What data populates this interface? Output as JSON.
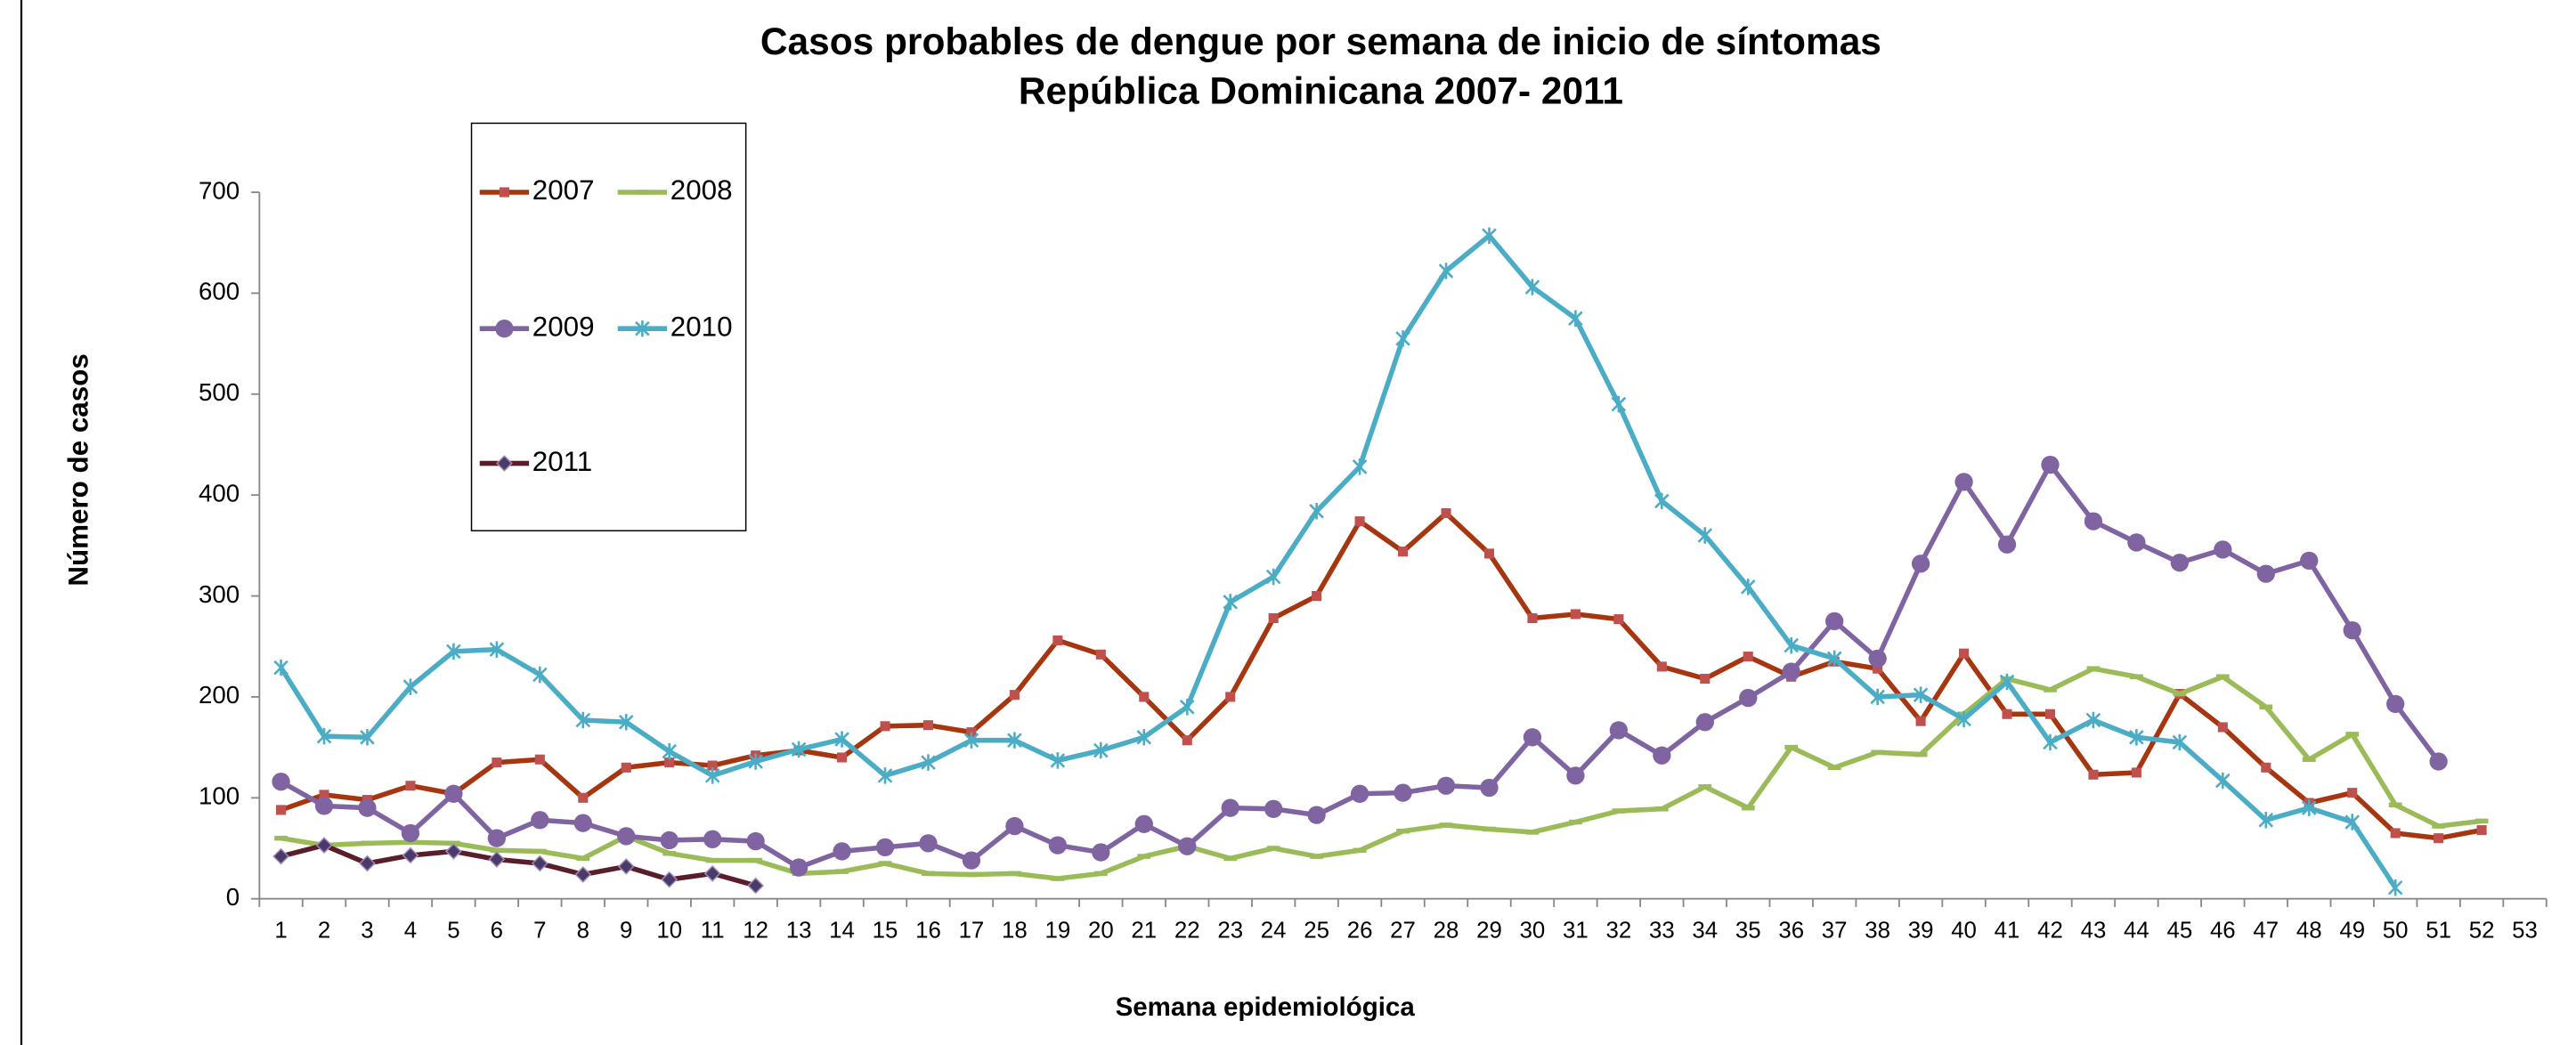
{
  "chart_data": {
    "type": "line",
    "title": "Casos probables de dengue por semana de inicio de síntomas",
    "subtitle": "República Dominicana 2007- 2011",
    "y_label": "Número de casos",
    "x_label": "Semana epidemiológica",
    "categories": [
      "1",
      "2",
      "3",
      "4",
      "5",
      "6",
      "7",
      "8",
      "9",
      "10",
      "11",
      "12",
      "13",
      "14",
      "15",
      "16",
      "17",
      "18",
      "19",
      "20",
      "21",
      "22",
      "23",
      "24",
      "25",
      "26",
      "27",
      "28",
      "29",
      "30",
      "31",
      "32",
      "33",
      "34",
      "35",
      "36",
      "37",
      "38",
      "39",
      "40",
      "41",
      "42",
      "43",
      "44",
      "45",
      "46",
      "47",
      "48",
      "49",
      "50",
      "51",
      "52",
      "53"
    ],
    "ylim": [
      0,
      700
    ],
    "yticks": [
      0,
      100,
      200,
      300,
      400,
      500,
      600,
      700
    ],
    "grid": false,
    "series": [
      {
        "name": "2007",
        "color": "#a5360f",
        "marker": "square",
        "marker_color": "#c0504d",
        "values": [
          88,
          103,
          98,
          112,
          104,
          135,
          138,
          100,
          130,
          135,
          132,
          142,
          147,
          140,
          171,
          172,
          165,
          202,
          256,
          242,
          200,
          157,
          200,
          278,
          300,
          374,
          344,
          382,
          342,
          278,
          282,
          277,
          230,
          218,
          240,
          220,
          235,
          228,
          176,
          243,
          183,
          183,
          123,
          125,
          203,
          170,
          130,
          95,
          105,
          65,
          60,
          68,
          null
        ]
      },
      {
        "name": "2008",
        "color": "#9bbb59",
        "marker": "dash",
        "marker_color": "#9bbb59",
        "values": [
          60,
          53,
          55,
          56,
          55,
          48,
          47,
          40,
          62,
          45,
          38,
          38,
          25,
          27,
          35,
          25,
          24,
          25,
          20,
          25,
          42,
          52,
          40,
          50,
          42,
          48,
          67,
          73,
          69,
          66,
          76,
          87,
          89,
          111,
          90,
          150,
          130,
          145,
          143,
          183,
          218,
          207,
          228,
          220,
          203,
          220,
          190,
          138,
          163,
          93,
          72,
          77,
          null
        ]
      },
      {
        "name": "2009",
        "color": "#8064a2",
        "marker": "circle",
        "marker_color": "#8064a2",
        "values": [
          116,
          92,
          90,
          65,
          104,
          60,
          78,
          75,
          62,
          58,
          59,
          57,
          31,
          47,
          51,
          55,
          38,
          72,
          53,
          46,
          74,
          52,
          90,
          89,
          83,
          104,
          105,
          112,
          110,
          160,
          122,
          167,
          142,
          175,
          199,
          225,
          275,
          238,
          332,
          413,
          351,
          430,
          374,
          353,
          333,
          346,
          322,
          335,
          266,
          193,
          136,
          null,
          null
        ]
      },
      {
        "name": "2010",
        "color": "#4bacc6",
        "marker": "star",
        "marker_color": "#4bacc6",
        "values": [
          229,
          161,
          160,
          210,
          245,
          247,
          222,
          177,
          175,
          146,
          122,
          136,
          148,
          158,
          122,
          135,
          157,
          157,
          137,
          147,
          160,
          190,
          294,
          319,
          384,
          428,
          555,
          622,
          657,
          606,
          575,
          490,
          394,
          360,
          309,
          251,
          238,
          200,
          202,
          178,
          215,
          155,
          177,
          160,
          155,
          117,
          78,
          90,
          76,
          11,
          null,
          null,
          null
        ]
      },
      {
        "name": "2011",
        "color": "#5a1e2a",
        "marker": "diamond",
        "marker_color": "#4a3a6a",
        "values": [
          42,
          53,
          35,
          43,
          47,
          39,
          35,
          24,
          32,
          19,
          25,
          13,
          null,
          null,
          null,
          null,
          null,
          null,
          null,
          null,
          null,
          null,
          null,
          null,
          null,
          null,
          null,
          null,
          null,
          null,
          null,
          null,
          null,
          null,
          null,
          null,
          null,
          null,
          null,
          null,
          null,
          null,
          null,
          null,
          null,
          null,
          null,
          null,
          null,
          null,
          null,
          null,
          null
        ]
      }
    ]
  }
}
